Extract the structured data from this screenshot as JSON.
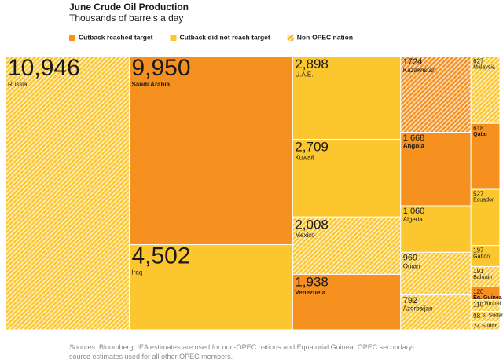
{
  "chart_data": {
    "type": "treemap",
    "title": "June Crude Oil Production",
    "subtitle": "Thousands of barrels a day",
    "legend": [
      {
        "name": "Cutback reached target",
        "color": "#f6901e",
        "hatched": false
      },
      {
        "name": "Cutback did not reach target",
        "color": "#fcc72e",
        "hatched": false
      },
      {
        "name": "Non-OPEC nation",
        "color": "#f6b41e",
        "hatched": true
      }
    ],
    "items": [
      {
        "name": "Russia",
        "value": 10946,
        "value_label": "10,946",
        "color": "#fcc72e",
        "hatched": true
      },
      {
        "name": "Saudi Arabia",
        "value": 9950,
        "value_label": "9,950",
        "color": "#f6901e",
        "hatched": false
      },
      {
        "name": "Iraq",
        "value": 4502,
        "value_label": "4,502",
        "color": "#fcc72e",
        "hatched": false
      },
      {
        "name": "U.A.E.",
        "value": 2898,
        "value_label": "2,898",
        "color": "#fcc72e",
        "hatched": false
      },
      {
        "name": "Kuwait",
        "value": 2709,
        "value_label": "2,709",
        "color": "#fcc72e",
        "hatched": false
      },
      {
        "name": "Mexico",
        "value": 2008,
        "value_label": "2,008",
        "color": "#fcc72e",
        "hatched": true
      },
      {
        "name": "Venezuela",
        "value": 1938,
        "value_label": "1,938",
        "color": "#f6901e",
        "hatched": false
      },
      {
        "name": "Kazakhstan",
        "value": 1724,
        "value_label": "1724",
        "color": "#f6901e",
        "hatched": true
      },
      {
        "name": "Angola",
        "value": 1668,
        "value_label": "1,668",
        "color": "#f6901e",
        "hatched": false
      },
      {
        "name": "Algeria",
        "value": 1060,
        "value_label": "1,060",
        "color": "#fcc72e",
        "hatched": false
      },
      {
        "name": "Oman",
        "value": 969,
        "value_label": "969",
        "color": "#fcc72e",
        "hatched": true
      },
      {
        "name": "Azerbaijan",
        "value": 792,
        "value_label": "792",
        "color": "#fcc72e",
        "hatched": true
      },
      {
        "name": "Malaysia",
        "value": 627,
        "value_label": "627",
        "color": "#fcc72e",
        "hatched": true
      },
      {
        "name": "Qatar",
        "value": 618,
        "value_label": "618",
        "color": "#f6901e",
        "hatched": false
      },
      {
        "name": "Ecuador",
        "value": 527,
        "value_label": "527",
        "color": "#fcc72e",
        "hatched": false
      },
      {
        "name": "Gabon",
        "value": 197,
        "value_label": "197",
        "color": "#fcc72e",
        "hatched": false
      },
      {
        "name": "Bahrain",
        "value": 191,
        "value_label": "191",
        "color": "#fcc72e",
        "hatched": true
      },
      {
        "name": "Eq. Guinea",
        "value": 120,
        "value_label": "120",
        "color": "#f6901e",
        "hatched": false
      },
      {
        "name": "Brunei",
        "value": 110,
        "value_label": "110",
        "color": "#fcc72e",
        "hatched": true
      },
      {
        "name": "S. Sudan",
        "value": 98,
        "value_label": "98",
        "color": "#fcc72e",
        "hatched": true
      },
      {
        "name": "Sudan",
        "value": 74,
        "value_label": "74",
        "color": "#fcc72e",
        "hatched": true
      }
    ],
    "source": "Sources: Bloomberg, IEA estimates are used for non-OPEC nations and Equatorial Guinea. OPEC secondary-source estimates used for all other OPEC members."
  }
}
